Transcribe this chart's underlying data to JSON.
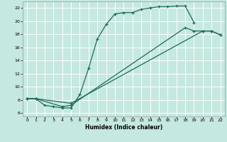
{
  "xlabel": "Humidex (Indice chaleur)",
  "xlim": [
    -0.5,
    22.5
  ],
  "ylim": [
    5.5,
    23.0
  ],
  "xticks": [
    0,
    1,
    2,
    3,
    4,
    5,
    6,
    7,
    8,
    9,
    10,
    11,
    12,
    13,
    14,
    15,
    16,
    17,
    18,
    19,
    20,
    21,
    22
  ],
  "yticks": [
    6,
    8,
    10,
    12,
    14,
    16,
    18,
    20,
    22
  ],
  "bg_color": "#c5e8e0",
  "line_color": "#1a6b5a",
  "grid_color": "#ffffff",
  "curve1_x": [
    0,
    1,
    2,
    3,
    4,
    5,
    6,
    7,
    8,
    9,
    10,
    11,
    12,
    13,
    14,
    15,
    16,
    17,
    18,
    19
  ],
  "curve1_y": [
    8.2,
    8.2,
    7.2,
    7.0,
    6.8,
    6.8,
    8.8,
    12.8,
    17.3,
    19.5,
    21.1,
    21.3,
    21.3,
    21.8,
    22.0,
    22.2,
    22.2,
    22.3,
    22.3,
    19.8
  ],
  "curve2_x": [
    0,
    1,
    4,
    5,
    18,
    19,
    20,
    21,
    22
  ],
  "curve2_y": [
    8.2,
    8.2,
    7.0,
    7.2,
    19.0,
    18.5,
    18.5,
    18.5,
    17.9
  ],
  "curve3_x": [
    0,
    1,
    5,
    20,
    21,
    22
  ],
  "curve3_y": [
    8.2,
    8.2,
    7.5,
    18.5,
    18.5,
    17.9
  ]
}
